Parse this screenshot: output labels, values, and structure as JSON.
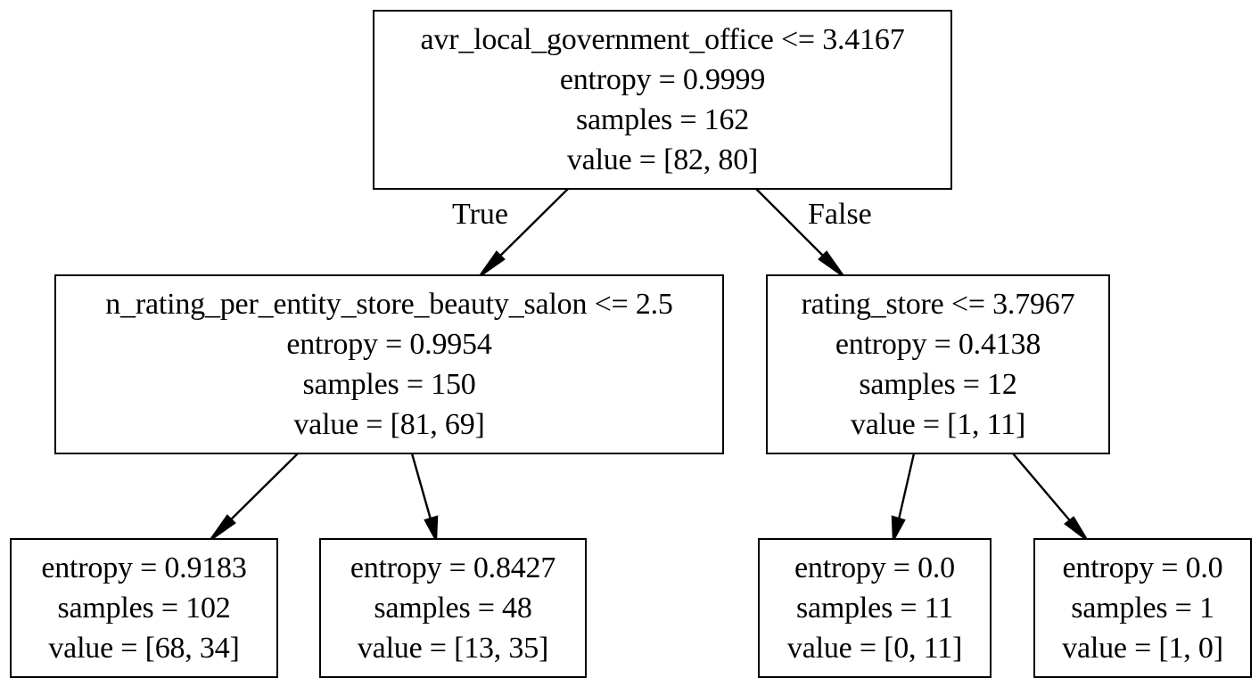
{
  "tree": {
    "root": {
      "condition": "avr_local_government_office <= 3.4167",
      "entropy": "entropy = 0.9999",
      "samples": "samples = 162",
      "value": "value = [82, 80]"
    },
    "left": {
      "condition": "n_rating_per_entity_store_beauty_salon <= 2.5",
      "entropy": "entropy = 0.9954",
      "samples": "samples = 150",
      "value": "value = [81, 69]"
    },
    "right": {
      "condition": "rating_store <= 3.7967",
      "entropy": "entropy = 0.4138",
      "samples": "samples = 12",
      "value": "value = [1, 11]"
    },
    "left_left": {
      "entropy": "entropy = 0.9183",
      "samples": "samples = 102",
      "value": "value = [68, 34]"
    },
    "left_right": {
      "entropy": "entropy = 0.8427",
      "samples": "samples = 48",
      "value": "value = [13, 35]"
    },
    "right_left": {
      "entropy": "entropy = 0.0",
      "samples": "samples = 11",
      "value": "value = [0, 11]"
    },
    "right_right": {
      "entropy": "entropy = 0.0",
      "samples": "samples = 1",
      "value": "value = [1, 0]"
    }
  },
  "edge_labels": {
    "true_label": "True",
    "false_label": "False"
  }
}
